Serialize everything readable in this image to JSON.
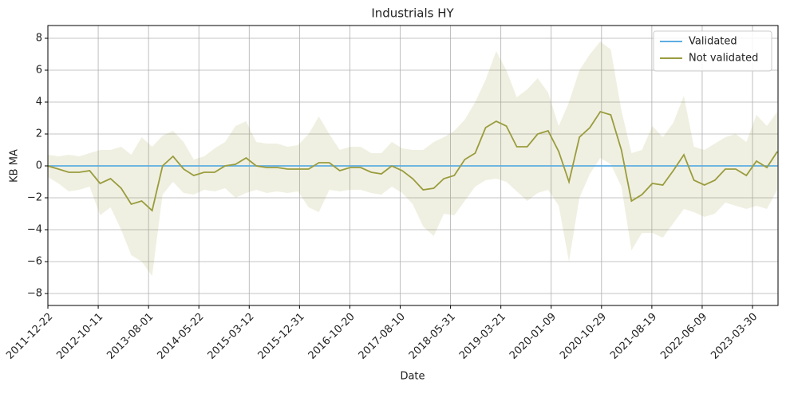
{
  "chart_data": {
    "type": "line",
    "title": "Industrials HY",
    "xlabel": "Date",
    "ylabel": "KB MA",
    "x": [
      "2011-12-22",
      "2012-02-22",
      "2012-04-22",
      "2012-06-22",
      "2012-08-22",
      "2012-10-22",
      "2012-12-22",
      "2013-02-22",
      "2013-04-22",
      "2013-06-22",
      "2013-08-22",
      "2013-10-22",
      "2013-12-22",
      "2014-02-22",
      "2014-04-22",
      "2014-06-22",
      "2014-08-22",
      "2014-10-22",
      "2014-12-22",
      "2015-02-22",
      "2015-04-22",
      "2015-06-22",
      "2015-08-22",
      "2015-10-22",
      "2015-12-22",
      "2016-02-22",
      "2016-04-22",
      "2016-06-22",
      "2016-08-22",
      "2016-10-22",
      "2016-12-22",
      "2017-02-22",
      "2017-04-22",
      "2017-06-22",
      "2017-08-22",
      "2017-10-22",
      "2017-12-22",
      "2018-02-22",
      "2018-04-22",
      "2018-06-22",
      "2018-08-22",
      "2018-10-22",
      "2018-12-22",
      "2019-02-22",
      "2019-04-22",
      "2019-06-22",
      "2019-08-22",
      "2019-10-22",
      "2019-12-22",
      "2020-02-22",
      "2020-04-22",
      "2020-06-22",
      "2020-08-22",
      "2020-10-22",
      "2020-12-22",
      "2021-02-22",
      "2021-04-22",
      "2021-06-22",
      "2021-08-22",
      "2021-10-22",
      "2021-12-22",
      "2022-02-22",
      "2022-04-22",
      "2022-06-22",
      "2022-08-22",
      "2022-10-22",
      "2022-12-22",
      "2023-02-22",
      "2023-04-22",
      "2023-06-22",
      "2023-08-22"
    ],
    "series": [
      {
        "name": "Validated",
        "color": "#5dade2",
        "values": [
          0,
          0,
          0,
          0,
          0,
          0,
          0,
          0,
          0,
          0,
          0,
          0,
          0,
          0,
          0,
          0,
          0,
          0,
          0,
          0,
          0,
          0,
          0,
          0,
          0,
          0,
          0,
          0,
          0,
          0,
          0,
          0,
          0,
          0,
          0,
          0,
          0,
          0,
          0,
          0,
          0,
          0,
          0,
          0,
          0,
          0,
          0,
          0,
          0,
          0,
          0,
          0,
          0,
          0,
          0,
          0,
          0,
          0,
          0,
          0,
          0,
          0,
          0,
          0,
          0,
          0,
          0,
          0,
          0,
          0,
          0
        ]
      },
      {
        "name": "Not validated",
        "color": "#9a9c3e",
        "values": [
          0,
          -0.2,
          -0.4,
          -0.4,
          -0.3,
          -1.1,
          -0.8,
          -1.4,
          -2.4,
          -2.2,
          -2.8,
          0,
          0.6,
          -0.2,
          -0.6,
          -0.4,
          -0.4,
          0,
          0.1,
          0.5,
          0,
          -0.1,
          -0.1,
          -0.2,
          -0.2,
          -0.2,
          0.2,
          0.2,
          -0.3,
          -0.1,
          -0.1,
          -0.4,
          -0.5,
          0,
          -0.3,
          -0.8,
          -1.5,
          -1.4,
          -0.8,
          -0.6,
          0.4,
          0.8,
          2.4,
          2.8,
          2.5,
          1.2,
          1.2,
          2,
          2.2,
          0.9,
          -1,
          1.8,
          2.4,
          3.4,
          3.2,
          1,
          -2.2,
          -1.8,
          -1.1,
          -1.2,
          -0.3,
          0.7,
          -0.9,
          -1.2,
          -0.9,
          -0.2,
          -0.2,
          -0.6,
          0.3,
          -0.1,
          0.9
        ],
        "band": {
          "color": "#9a9c3e",
          "lower": [
            -0.7,
            -1.1,
            -1.6,
            -1.5,
            -1.3,
            -3.1,
            -2.6,
            -4,
            -5.6,
            -6,
            -6.9,
            -1.8,
            -1,
            -1.7,
            -1.8,
            -1.5,
            -1.6,
            -1.4,
            -2,
            -1.7,
            -1.5,
            -1.7,
            -1.6,
            -1.7,
            -1.6,
            -2.6,
            -2.9,
            -1.5,
            -1.6,
            -1.5,
            -1.5,
            -1.7,
            -1.8,
            -1.3,
            -1.7,
            -2.4,
            -3.8,
            -4.4,
            -3,
            -3.1,
            -2.2,
            -1.3,
            -0.9,
            -0.8,
            -1,
            -1.6,
            -2.2,
            -1.7,
            -1.5,
            -2.5,
            -6,
            -2,
            -0.5,
            0.5,
            0.1,
            -1.3,
            -5.3,
            -4.2,
            -4.2,
            -4.5,
            -3.6,
            -2.7,
            -2.9,
            -3.2,
            -3,
            -2.3,
            -2.5,
            -2.7,
            -2.5,
            -2.7,
            -1.5
          ],
          "upper": [
            0.7,
            0.6,
            0.7,
            0.6,
            0.8,
            1,
            1,
            1.2,
            0.7,
            1.8,
            1.2,
            1.9,
            2.2,
            1.5,
            0.4,
            0.6,
            1.1,
            1.5,
            2.5,
            2.8,
            1.5,
            1.4,
            1.4,
            1.2,
            1.3,
            2,
            3.1,
            2,
            1,
            1.2,
            1.2,
            0.8,
            0.8,
            1.5,
            1.1,
            1,
            1,
            1.5,
            1.8,
            2.2,
            2.9,
            4,
            5.4,
            7.2,
            6,
            4.3,
            4.8,
            5.5,
            4.6,
            2.5,
            4,
            6,
            7,
            7.8,
            7.3,
            3.5,
            0.8,
            1,
            2.5,
            1.8,
            2.7,
            4.4,
            1.2,
            1,
            1.4,
            1.8,
            2,
            1.5,
            3.2,
            2.5,
            3.4
          ]
        }
      }
    ],
    "xlim": [
      "2011-12-22",
      "2023-08-26"
    ],
    "xticks": [
      "2011-12-22",
      "2012-10-11",
      "2013-08-01",
      "2014-05-22",
      "2015-03-12",
      "2015-12-31",
      "2016-10-20",
      "2017-08-10",
      "2018-05-31",
      "2019-03-21",
      "2020-01-09",
      "2020-10-29",
      "2021-08-19",
      "2022-06-09",
      "2023-03-30"
    ],
    "ylim": [
      -8.75,
      8.8
    ],
    "yticks": [
      {
        "value": -8,
        "label": "−8"
      },
      {
        "value": -6,
        "label": "−6"
      },
      {
        "value": -4,
        "label": "−4"
      },
      {
        "value": -2,
        "label": "−2"
      },
      0,
      2,
      4,
      6,
      8
    ],
    "grid": true,
    "legend": "upper right"
  }
}
